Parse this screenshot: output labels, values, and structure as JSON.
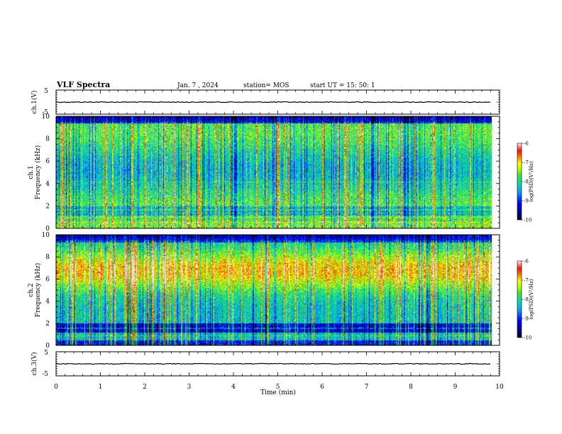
{
  "header": {
    "title": "VLF Spectra",
    "date": "Jan. 7 , 2024",
    "station": "station= MOS",
    "start_ut": "start UT = 15: 50: 1"
  },
  "colors": {
    "spectrum": [
      "#000064",
      "#0000c8",
      "#0040ff",
      "#00b0ff",
      "#00e0c0",
      "#30e060",
      "#a0ff00",
      "#ffff00",
      "#ff9000",
      "#ff2000",
      "#ff9090",
      "#ffffff"
    ]
  },
  "chart_data": [
    {
      "id": "ch1-waveform",
      "type": "line",
      "ylabel": "ch.1(V)",
      "ylim": [
        -5,
        5
      ],
      "yticks": [
        "5",
        "-5"
      ],
      "baseline": 0,
      "xlim": [
        0,
        9.8
      ]
    },
    {
      "id": "ch1-spectrogram",
      "type": "heatmap",
      "ylabel_line1": "ch.1",
      "ylabel_line2": "Frequency (kHz)",
      "ylim": [
        0,
        10
      ],
      "yticks": [
        "0",
        "2",
        "4",
        "6",
        "8",
        "10"
      ],
      "xlim": [
        0,
        9.8
      ],
      "colorbar": {
        "label": "log(PSD)(V²/Hz)",
        "range": [
          -10,
          -6
        ],
        "ticks": [
          "-6",
          "-7",
          "-8",
          "-9",
          "-10"
        ]
      },
      "intensity_profile": "broadband"
    },
    {
      "id": "ch2-spectrogram",
      "type": "heatmap",
      "ylabel_line1": "ch.2",
      "ylabel_line2": "Frequency (kHz)",
      "ylim": [
        0,
        10
      ],
      "yticks": [
        "0",
        "2",
        "4",
        "6",
        "8",
        "10"
      ],
      "xlim": [
        0,
        9.8
      ],
      "colorbar": {
        "label": "log(PSD)(V²/Hz)",
        "range": [
          -10,
          -6
        ],
        "ticks": [
          "-6",
          "-7",
          "-8",
          "-9",
          "-10"
        ]
      },
      "intensity_profile": "peak-near-7kHz"
    },
    {
      "id": "ch3-waveform",
      "type": "line",
      "ylabel": "ch.3(V)",
      "ylim": [
        -5,
        5
      ],
      "yticks": [
        "5",
        "-5"
      ],
      "baseline": 0,
      "xlim": [
        0,
        9.8
      ]
    }
  ],
  "x_axis": {
    "label": "Time (min)",
    "range": [
      0,
      10
    ],
    "ticks": [
      "0",
      "1",
      "2",
      "3",
      "4",
      "5",
      "6",
      "7",
      "8",
      "9",
      "10"
    ]
  }
}
